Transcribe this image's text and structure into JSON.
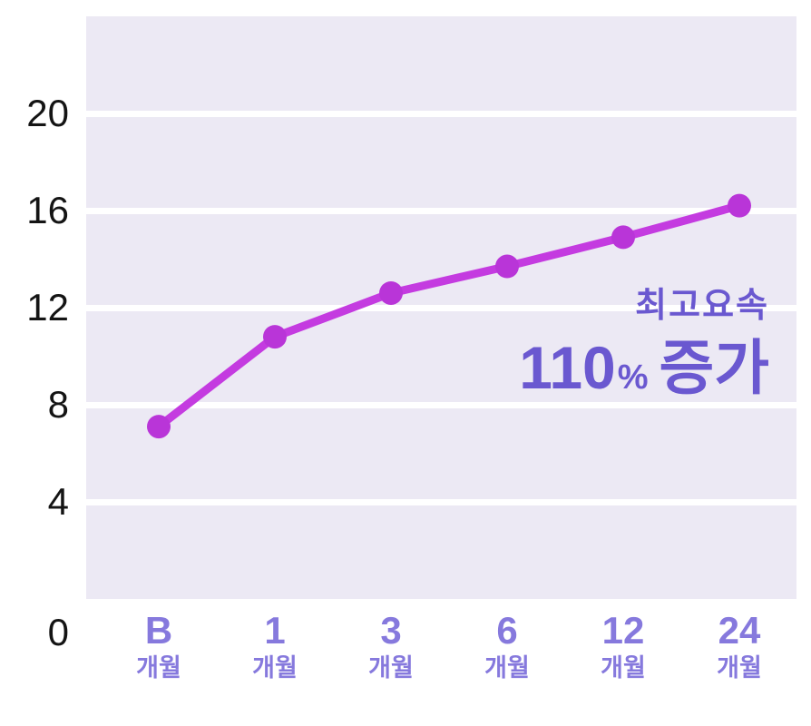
{
  "colors": {
    "line": "#c43be0",
    "point": "#b935d8",
    "plot_bg": "#ece9f4",
    "grid": "#ffffff",
    "y_label": "#141414",
    "x_label": "#8679dd",
    "annotation": "#6a58d0"
  },
  "chart_data": {
    "type": "line",
    "categories": [
      "B",
      "1",
      "3",
      "6",
      "12",
      "24"
    ],
    "category_suffix": "개월",
    "values": [
      7.1,
      10.8,
      12.6,
      13.7,
      14.9,
      16.2
    ],
    "y_ticks": [
      0,
      4,
      8,
      12,
      16,
      20
    ],
    "ylim": [
      0,
      24
    ],
    "grid": true,
    "legend_position": "none",
    "title": "",
    "xlabel": "",
    "ylabel": "",
    "annotation": {
      "title": "최고요속",
      "value": "110",
      "unit": "%",
      "suffix": "증가"
    }
  }
}
